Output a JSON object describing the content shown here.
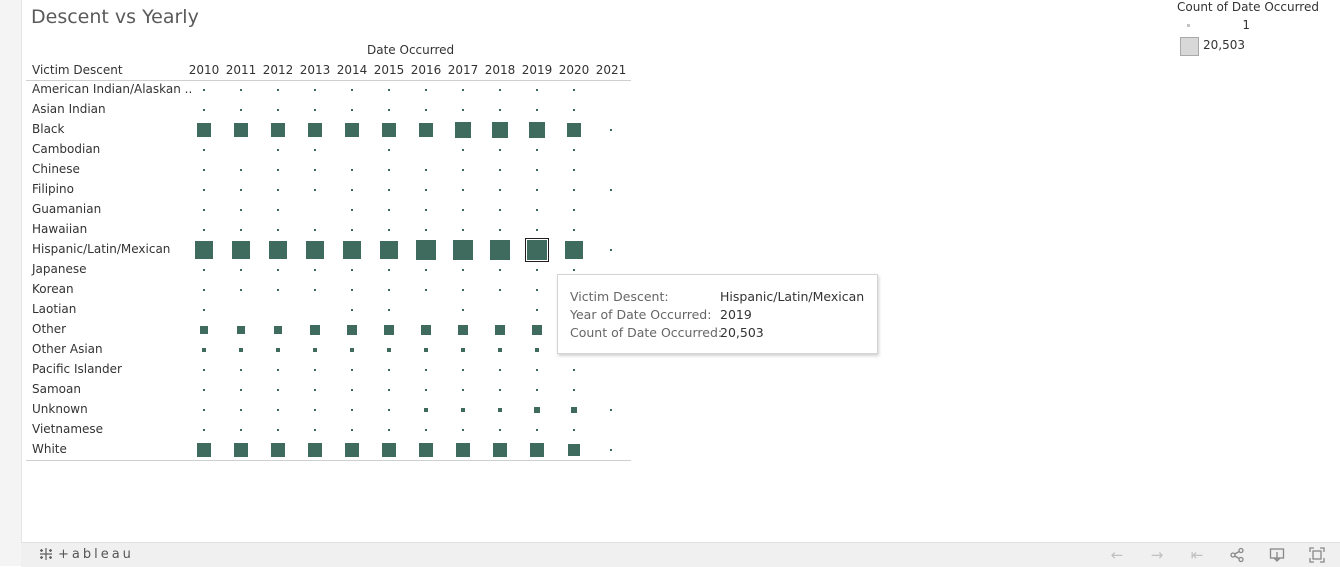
{
  "title": "Descent vs Yearly",
  "legend": {
    "title": "Count of Date Occurred",
    "min_label": "1",
    "max_label": "20,503"
  },
  "colors": {
    "mark": "#3f6b5e",
    "legend_fill": "#d8d8d8"
  },
  "chart_data": {
    "type": "scatter",
    "column_header": "Date Occurred",
    "row_header": "Victim Descent",
    "years": [
      "2010",
      "2011",
      "2012",
      "2013",
      "2014",
      "2015",
      "2016",
      "2017",
      "2018",
      "2019",
      "2020",
      "2021"
    ],
    "rows": [
      {
        "name": "American Indian/Alaskan ..",
        "values": [
          12,
          10,
          10,
          9,
          12,
          12,
          12,
          13,
          12,
          12,
          10,
          null
        ]
      },
      {
        "name": "Asian Indian",
        "values": [
          2,
          2,
          2,
          2,
          2,
          2,
          2,
          2,
          2,
          2,
          2,
          null
        ]
      },
      {
        "name": "Black",
        "values": [
          10000,
          9200,
          9000,
          9600,
          10500,
          10800,
          11400,
          12000,
          11700,
          12200,
          11000,
          1
        ]
      },
      {
        "name": "Cambodian",
        "values": [
          1,
          null,
          1,
          1,
          null,
          1,
          null,
          1,
          1,
          1,
          1,
          null
        ]
      },
      {
        "name": "Chinese",
        "values": [
          10,
          10,
          10,
          10,
          10,
          10,
          10,
          10,
          10,
          10,
          10,
          null
        ]
      },
      {
        "name": "Filipino",
        "values": [
          10,
          10,
          10,
          10,
          10,
          10,
          10,
          10,
          10,
          10,
          10,
          1
        ]
      },
      {
        "name": "Guamanian",
        "values": [
          1,
          1,
          1,
          null,
          1,
          1,
          1,
          1,
          1,
          1,
          1,
          null
        ]
      },
      {
        "name": "Hawaiian",
        "values": [
          2,
          2,
          2,
          2,
          2,
          2,
          2,
          2,
          2,
          2,
          2,
          null
        ]
      },
      {
        "name": "Hispanic/Latin/Mexican",
        "values": [
          16000,
          16500,
          17000,
          17300,
          17700,
          18500,
          19400,
          20400,
          20200,
          20503,
          17200,
          1
        ]
      },
      {
        "name": "Japanese",
        "values": [
          10,
          10,
          10,
          10,
          10,
          10,
          10,
          10,
          10,
          10,
          10,
          null
        ]
      },
      {
        "name": "Korean",
        "values": [
          100,
          60,
          60,
          60,
          60,
          60,
          60,
          60,
          60,
          60,
          null,
          null
        ]
      },
      {
        "name": "Laotian",
        "values": [
          1,
          null,
          null,
          null,
          1,
          1,
          null,
          1,
          null,
          1,
          null,
          null
        ]
      },
      {
        "name": "Other",
        "values": [
          4000,
          4100,
          4100,
          4200,
          4200,
          4600,
          4700,
          4800,
          4700,
          4600,
          null,
          null
        ]
      },
      {
        "name": "Other Asian",
        "values": [
          900,
          900,
          800,
          800,
          800,
          900,
          900,
          1000,
          1000,
          1100,
          null,
          null
        ]
      },
      {
        "name": "Pacific Islander",
        "values": [
          10,
          10,
          10,
          10,
          10,
          10,
          10,
          10,
          10,
          10,
          10,
          null
        ]
      },
      {
        "name": "Samoan",
        "values": [
          1,
          1,
          1,
          1,
          1,
          1,
          1,
          1,
          1,
          1,
          1,
          null
        ]
      },
      {
        "name": "Unknown",
        "values": [
          30,
          30,
          30,
          100,
          200,
          300,
          500,
          700,
          1000,
          2500,
          1800,
          1
        ]
      },
      {
        "name": "Vietnamese",
        "values": [
          10,
          10,
          10,
          10,
          10,
          10,
          10,
          10,
          10,
          10,
          10,
          null
        ]
      },
      {
        "name": "White",
        "values": [
          9500,
          9200,
          9000,
          9400,
          9500,
          9500,
          9700,
          9700,
          9600,
          9500,
          7700,
          1
        ]
      }
    ],
    "size_range": [
      1,
      20503
    ],
    "selected": {
      "row": "Hispanic/Latin/Mexican",
      "year": "2019"
    }
  },
  "tooltip": {
    "rows": [
      {
        "key": "Victim Descent:",
        "value": "Hispanic/Latin/Mexican"
      },
      {
        "key": "Year of Date Occurred:",
        "value": "2019"
      },
      {
        "key": "Count of Date Occurred:",
        "value": "20,503"
      }
    ]
  },
  "footer": {
    "logo_text": "+ableau",
    "icons": [
      "undo-icon",
      "redo-icon",
      "revert-icon",
      "share-icon",
      "download-icon",
      "fullscreen-icon"
    ]
  }
}
